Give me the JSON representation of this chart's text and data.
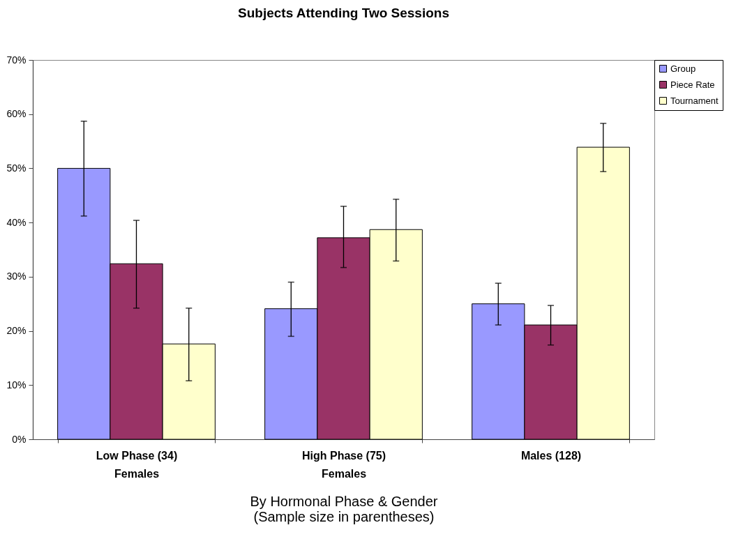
{
  "chart_data": {
    "type": "bar",
    "title": "Subjects Attending Two Sessions",
    "xlabel": "By Hormonal Phase & Gender\n(Sample size in parentheses)",
    "categories": [
      "Low Phase (34)\nFemales",
      "High Phase (75)\nFemales",
      "Males (128)"
    ],
    "series": [
      {
        "name": "Group",
        "color": "#9999ff",
        "values": [
          50,
          24.1,
          25.0
        ],
        "errors": [
          [
            41.2,
            58.7
          ],
          [
            19.0,
            29.0
          ],
          [
            21.1,
            28.8
          ]
        ]
      },
      {
        "name": "Piece Rate",
        "color": "#993366",
        "values": [
          32.4,
          37.2,
          21.1
        ],
        "errors": [
          [
            24.2,
            40.4
          ],
          [
            31.7,
            43.0
          ],
          [
            17.4,
            24.7
          ]
        ]
      },
      {
        "name": "Tournament",
        "color": "#ffffcc",
        "values": [
          17.6,
          38.7,
          53.9
        ],
        "errors": [
          [
            10.8,
            24.2
          ],
          [
            32.9,
            44.3
          ],
          [
            49.4,
            58.3
          ]
        ]
      }
    ],
    "ylim": [
      0,
      70
    ],
    "yticks": [
      {
        "value": 0,
        "label": "0%"
      },
      {
        "value": 10,
        "label": "10%"
      },
      {
        "value": 20,
        "label": "20%"
      },
      {
        "value": 30,
        "label": "30%"
      },
      {
        "value": 40,
        "label": "40%"
      },
      {
        "value": 50,
        "label": "50%"
      },
      {
        "value": 60,
        "label": "60%"
      },
      {
        "value": 70,
        "label": "70%"
      }
    ],
    "grid": false,
    "legend": "right"
  }
}
